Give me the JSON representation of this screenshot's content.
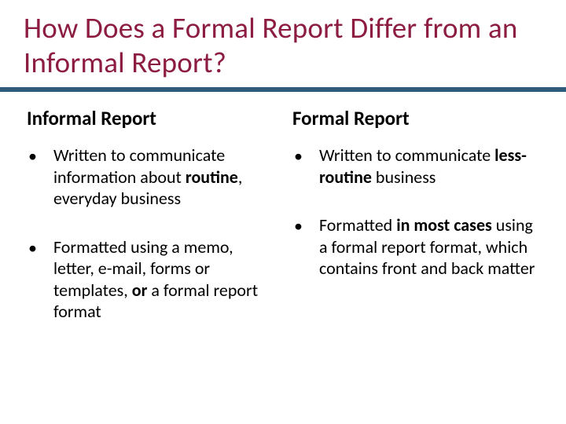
{
  "colors": {
    "title": "#8c1d40",
    "rule": "#2f5b7a",
    "text": "#000000",
    "background": "#ffffff"
  },
  "title": "How Does a Formal Report Differ from an Informal Report?",
  "left": {
    "heading": "Informal Report",
    "bullets": [
      {
        "html": "Written to communicate information about <b>routine</b>, everyday business"
      },
      {
        "html": "Formatted using a memo, letter, e-mail, forms or templates, <b>or</b> a formal report format"
      }
    ]
  },
  "right": {
    "heading": "Formal Report",
    "bullets": [
      {
        "html": "Written to communicate <b>less-routine</b> business"
      },
      {
        "html": "Formatted <b>in most cases</b> using a formal report format, which contains front and back matter"
      }
    ]
  }
}
